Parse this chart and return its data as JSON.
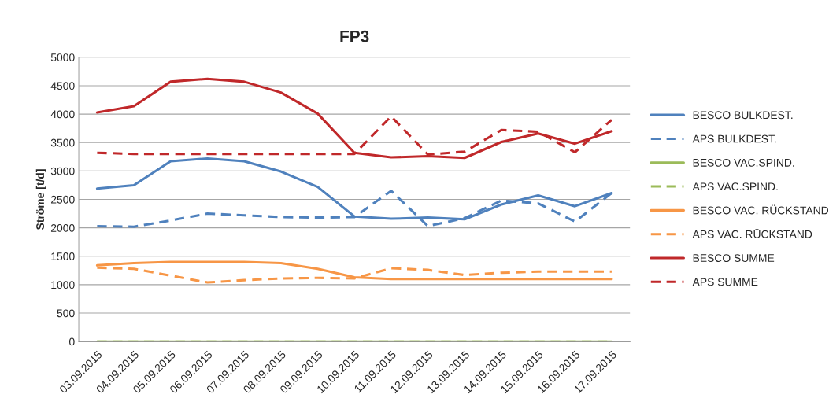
{
  "chart_data": {
    "type": "line",
    "title": "FP3",
    "ylabel": "Ströme [t/d]",
    "categories": [
      "03.09.2015",
      "04.09.2015",
      "05.09.2015",
      "06.09.2015",
      "07.09.2015",
      "08.09.2015",
      "09.09.2015",
      "10.09.2015",
      "11.09.2015",
      "12.09.2015",
      "13.09.2015",
      "14.09.2015",
      "15.09.2015",
      "16.09.2015",
      "17.09.2015"
    ],
    "ylim": [
      0,
      5000
    ],
    "yticks": [
      0,
      500,
      1000,
      1500,
      2000,
      2500,
      3000,
      3500,
      4000,
      4500,
      5000
    ],
    "grid": "y",
    "legend": "right",
    "marker": "none",
    "series": [
      {
        "name": "BESCO BULKDEST.",
        "color": "#4f81bd",
        "line_style": "solid",
        "values": [
          2690,
          2750,
          3170,
          3220,
          3170,
          2990,
          2720,
          2200,
          2160,
          2180,
          2150,
          2410,
          2570,
          2380,
          2610
        ]
      },
      {
        "name": "APS BULKDEST.",
        "color": "#4f81bd",
        "line_style": "dashed",
        "values": [
          2030,
          2020,
          2130,
          2250,
          2220,
          2190,
          2180,
          2190,
          2650,
          2030,
          2170,
          2480,
          2430,
          2110,
          2610
        ]
      },
      {
        "name": "BESCO VAC.SPIND.",
        "color": "#9bbb59",
        "line_style": "solid",
        "values": [
          0,
          0,
          0,
          0,
          0,
          0,
          0,
          0,
          0,
          0,
          0,
          0,
          0,
          0,
          0
        ]
      },
      {
        "name": "APS VAC.SPIND.",
        "color": "#9bbb59",
        "line_style": "dashed",
        "values": [
          0,
          0,
          0,
          0,
          0,
          0,
          0,
          0,
          0,
          0,
          0,
          0,
          0,
          0,
          0
        ]
      },
      {
        "name": "BESCO VAC. RÜCKSTAND",
        "color": "#f79646",
        "line_style": "solid",
        "values": [
          1340,
          1380,
          1400,
          1400,
          1400,
          1380,
          1280,
          1130,
          1100,
          1100,
          1100,
          1100,
          1100,
          1100,
          1100
        ]
      },
      {
        "name": "APS VAC. RÜCKSTAND",
        "color": "#f79646",
        "line_style": "dashed",
        "values": [
          1300,
          1280,
          1160,
          1040,
          1080,
          1110,
          1120,
          1110,
          1290,
          1260,
          1170,
          1210,
          1230,
          1230,
          1230
        ]
      },
      {
        "name": "BESCO SUMME",
        "color": "#c0282a",
        "line_style": "solid",
        "values": [
          4030,
          4140,
          4570,
          4620,
          4570,
          4380,
          4010,
          3320,
          3240,
          3260,
          3230,
          3510,
          3660,
          3480,
          3700
        ]
      },
      {
        "name": "APS SUMME",
        "color": "#c0282a",
        "line_style": "dashed",
        "values": [
          3320,
          3300,
          3300,
          3300,
          3300,
          3300,
          3300,
          3300,
          3960,
          3290,
          3340,
          3720,
          3690,
          3330,
          3900
        ]
      }
    ]
  }
}
